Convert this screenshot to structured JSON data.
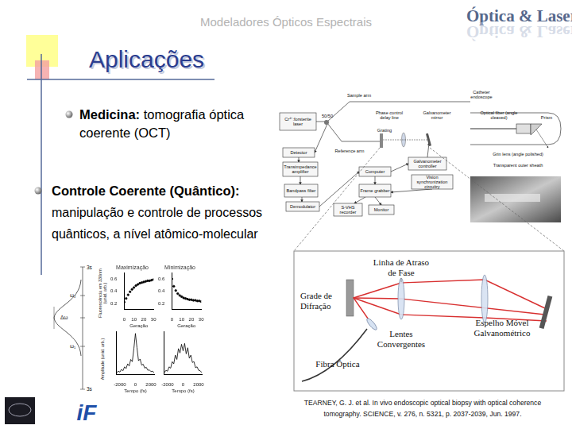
{
  "header": {
    "title": "Modeladores Ópticos Espectrais",
    "logo": "Óptica & Laser"
  },
  "slide_title": "Aplicações",
  "bullets": [
    {
      "bold": "Medicina:",
      "text_lines": [
        "tomografia óptica",
        "coerente (OCT)"
      ]
    },
    {
      "bold": "Controle Coerente (Quântico):",
      "text_lines": [
        "manipulação e controle de processos",
        "quânticos, a nível atômico-molecular"
      ]
    }
  ],
  "oct_diagram": {
    "boxes": [
      "Cr⁴⁺:forsterite laser",
      "Detector",
      "Transimpedance amplifier",
      "Bandpass filter",
      "Demodulator",
      "Computer",
      "Frame grabber",
      "S-VHS recorder",
      "Monitor",
      "Galvanometer controller",
      "Vision synchronization circuitry"
    ],
    "labels": [
      "Sample arm",
      "50/50",
      "Phase control delay line",
      "Galvanometer mirror",
      "Grating",
      "Reference arm",
      "Catheter endoscope"
    ],
    "catheter_labels": [
      "Optical fiber (angle cleaved)",
      "Prism",
      "Grin lens (angle polished)",
      "Transparent outer sheath"
    ]
  },
  "delay_line": {
    "labels": [
      [
        "Linha de Atraso",
        "de Fase"
      ],
      [
        "Grade de",
        "Difração"
      ],
      [
        "Espelho Móvel",
        "Galvanométrico"
      ],
      [
        "Lentes",
        "Convergentes"
      ],
      [
        "Fibra Óptica"
      ]
    ]
  },
  "schematic_labels": [
    "3s",
    "ω₂",
    "Δω",
    "ω₁",
    "3s"
  ],
  "chart_data": [
    {
      "type": "line",
      "title": "Maximização",
      "x_label": "Geração",
      "y_label": "Fluorescência em 330nm (unid. arb.)",
      "x": [
        0,
        2,
        4,
        6,
        8,
        10,
        12,
        14,
        16,
        18,
        20,
        22,
        24,
        26,
        28,
        30
      ],
      "values": [
        0.22,
        0.28,
        0.34,
        0.39,
        0.43,
        0.46,
        0.49,
        0.51,
        0.53,
        0.54,
        0.55,
        0.56,
        0.57,
        0.57,
        0.58,
        0.59
      ],
      "xlim": [
        0,
        30
      ],
      "xticks": [
        0,
        10,
        20,
        30
      ],
      "ylim": [
        0.1,
        0.7
      ],
      "yticks": [
        0.2,
        0.4,
        0.6
      ],
      "color": "#000000",
      "marker": "circle",
      "line_style": "none",
      "grid": false
    },
    {
      "type": "line",
      "title": "Minimização",
      "x_label": "Geração",
      "x": [
        0,
        2,
        4,
        6,
        8,
        10,
        12,
        14,
        16,
        18,
        20,
        22,
        24,
        26,
        28,
        30
      ],
      "values": [
        0.6,
        0.48,
        0.41,
        0.36,
        0.33,
        0.31,
        0.29,
        0.28,
        0.27,
        0.26,
        0.26,
        0.25,
        0.25,
        0.24,
        0.24,
        0.23
      ],
      "xlim": [
        0,
        30
      ],
      "xticks": [
        0,
        10,
        20,
        30
      ],
      "ylim": [
        0.1,
        0.7
      ],
      "yticks": [
        0.2,
        0.4,
        0.6
      ],
      "color": "#000000",
      "marker": "circle",
      "line_style": "none",
      "grid": false
    },
    {
      "type": "line",
      "x_label": "Tempo (fs)",
      "y_label": "Amplitude (unid. arb.)",
      "x": [
        -2400,
        -2200,
        -2000,
        -1800,
        -1600,
        -1400,
        -1200,
        -1000,
        -800,
        -600,
        -400,
        -200,
        0,
        200,
        400,
        600,
        800,
        1000,
        1200,
        1400,
        1600,
        1800,
        2000,
        2200,
        2400
      ],
      "values": [
        0.05,
        0.08,
        0.06,
        0.12,
        0.09,
        0.18,
        0.14,
        0.25,
        0.2,
        0.35,
        0.3,
        0.6,
        0.95,
        0.62,
        0.32,
        0.36,
        0.22,
        0.24,
        0.15,
        0.17,
        0.1,
        0.11,
        0.07,
        0.08,
        0.05
      ],
      "xlim": [
        -2500,
        2500
      ],
      "xticks": [
        -2000,
        0,
        2000
      ],
      "ylim": [
        0,
        1
      ],
      "color": "#000000",
      "marker": "none",
      "line_style": "solid",
      "grid": false,
      "tick_labels": "x"
    },
    {
      "type": "line",
      "x_label": "Tempo (fs)",
      "x": [
        -2400,
        -2200,
        -2000,
        -1800,
        -1600,
        -1400,
        -1200,
        -1000,
        -800,
        -600,
        -400,
        -200,
        0,
        200,
        400,
        600,
        800,
        1000,
        1200,
        1400,
        1600,
        1800,
        2000,
        2200,
        2400
      ],
      "values": [
        0.05,
        0.1,
        0.08,
        0.18,
        0.15,
        0.3,
        0.25,
        0.45,
        0.35,
        0.6,
        0.5,
        0.7,
        0.55,
        0.72,
        0.48,
        0.62,
        0.38,
        0.45,
        0.28,
        0.3,
        0.16,
        0.18,
        0.1,
        0.09,
        0.05
      ],
      "xlim": [
        -2500,
        2500
      ],
      "xticks": [
        -2000,
        0,
        2000
      ],
      "ylim": [
        0,
        1
      ],
      "color": "#000000",
      "marker": "none",
      "line_style": "solid",
      "grid": false,
      "tick_labels": "x"
    }
  ],
  "citation_lines": [
    "TEARNEY, G. J. et al. In vivo endoscopic optical biopsy with optical coherence",
    "tomography. SCIENCE, v. 276, n. 5321, p. 2037-2039, Jun. 1997."
  ],
  "logos": {
    "institute": "iF"
  }
}
